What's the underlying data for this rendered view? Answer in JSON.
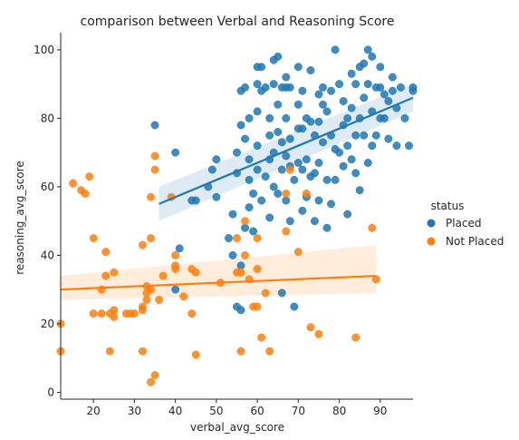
{
  "chart_data": {
    "type": "scatter",
    "title": "comparison between Verbal and Reasoning Score",
    "xlabel": "verbal_avg_score",
    "ylabel": "reasoning_avg_score",
    "xlim": [
      12,
      98
    ],
    "ylim": [
      -2,
      105
    ],
    "xticks": [
      20,
      30,
      40,
      50,
      60,
      70,
      80,
      90
    ],
    "yticks": [
      0,
      20,
      40,
      60,
      80,
      100
    ],
    "grid": false,
    "legend": {
      "title": "status",
      "placement": "right",
      "entries": [
        "Placed",
        "Not Placed"
      ]
    },
    "series": [
      {
        "name": "Placed",
        "color": "#1f77b4",
        "regression": {
          "x": [
            36,
            98
          ],
          "y": [
            55,
            86
          ],
          "ci_lower": [
            50,
            82
          ],
          "ci_upper": [
            60,
            90
          ]
        },
        "points": [
          [
            35,
            78
          ],
          [
            40,
            70
          ],
          [
            40,
            30
          ],
          [
            41,
            42
          ],
          [
            44,
            56
          ],
          [
            45,
            56
          ],
          [
            48,
            60
          ],
          [
            49,
            65
          ],
          [
            50,
            68
          ],
          [
            50,
            57
          ],
          [
            53,
            45
          ],
          [
            54,
            52
          ],
          [
            54,
            40
          ],
          [
            55,
            70
          ],
          [
            55,
            64
          ],
          [
            55,
            25
          ],
          [
            56,
            88
          ],
          [
            56,
            78
          ],
          [
            56,
            37
          ],
          [
            56,
            24
          ],
          [
            57,
            89
          ],
          [
            57,
            74
          ],
          [
            57,
            48
          ],
          [
            58,
            80
          ],
          [
            58,
            68
          ],
          [
            58,
            62
          ],
          [
            58,
            54
          ],
          [
            59,
            58
          ],
          [
            59,
            47
          ],
          [
            60,
            95
          ],
          [
            60,
            90
          ],
          [
            60,
            82
          ],
          [
            60,
            72
          ],
          [
            60,
            65
          ],
          [
            61,
            95
          ],
          [
            61,
            88
          ],
          [
            61,
            56
          ],
          [
            62,
            89
          ],
          [
            62,
            63
          ],
          [
            63,
            80
          ],
          [
            63,
            75
          ],
          [
            63,
            68
          ],
          [
            63,
            51
          ],
          [
            64,
            97
          ],
          [
            64,
            90
          ],
          [
            64,
            70
          ],
          [
            64,
            60
          ],
          [
            65,
            98
          ],
          [
            65,
            84
          ],
          [
            65,
            76
          ],
          [
            65,
            58
          ],
          [
            66,
            89
          ],
          [
            66,
            73
          ],
          [
            66,
            65
          ],
          [
            66,
            29
          ],
          [
            67,
            92
          ],
          [
            67,
            89
          ],
          [
            67,
            80
          ],
          [
            67,
            69
          ],
          [
            67,
            56
          ],
          [
            68,
            89
          ],
          [
            68,
            74
          ],
          [
            68,
            66
          ],
          [
            68,
            50
          ],
          [
            69,
            62
          ],
          [
            69,
            25
          ],
          [
            70,
            95
          ],
          [
            70,
            84
          ],
          [
            70,
            77
          ],
          [
            70,
            67
          ],
          [
            71,
            88
          ],
          [
            71,
            77
          ],
          [
            71,
            65
          ],
          [
            71,
            53
          ],
          [
            72,
            80
          ],
          [
            72,
            68
          ],
          [
            72,
            57
          ],
          [
            73,
            94
          ],
          [
            73,
            79
          ],
          [
            73,
            63
          ],
          [
            74,
            75
          ],
          [
            74,
            64
          ],
          [
            74,
            50
          ],
          [
            75,
            87
          ],
          [
            75,
            79
          ],
          [
            75,
            67
          ],
          [
            75,
            56
          ],
          [
            76,
            89
          ],
          [
            76,
            84
          ],
          [
            76,
            73
          ],
          [
            77,
            82
          ],
          [
            77,
            62
          ],
          [
            77,
            48
          ],
          [
            78,
            88
          ],
          [
            78,
            75
          ],
          [
            78,
            55
          ],
          [
            79,
            100
          ],
          [
            79,
            71
          ],
          [
            79,
            62
          ],
          [
            80,
            90
          ],
          [
            80,
            70
          ],
          [
            81,
            85
          ],
          [
            81,
            78
          ],
          [
            81,
            66
          ],
          [
            82,
            80
          ],
          [
            82,
            72
          ],
          [
            82,
            52
          ],
          [
            83,
            93
          ],
          [
            83,
            83
          ],
          [
            83,
            68
          ],
          [
            84,
            90
          ],
          [
            84,
            75
          ],
          [
            84,
            64
          ],
          [
            85,
            95
          ],
          [
            85,
            80
          ],
          [
            85,
            59
          ],
          [
            86,
            96
          ],
          [
            86,
            86
          ],
          [
            86,
            75
          ],
          [
            87,
            100
          ],
          [
            87,
            90
          ],
          [
            87,
            67
          ],
          [
            88,
            98
          ],
          [
            88,
            82
          ],
          [
            88,
            72
          ],
          [
            89,
            89
          ],
          [
            89,
            75
          ],
          [
            90,
            95
          ],
          [
            90,
            89
          ],
          [
            90,
            80
          ],
          [
            91,
            87
          ],
          [
            91,
            80
          ],
          [
            92,
            85
          ],
          [
            92,
            74
          ],
          [
            93,
            92
          ],
          [
            93,
            88
          ],
          [
            94,
            72
          ],
          [
            94,
            83
          ],
          [
            95,
            89
          ],
          [
            96,
            80
          ],
          [
            97,
            72
          ],
          [
            98,
            88
          ],
          [
            98,
            89
          ]
        ]
      },
      {
        "name": "Not Placed",
        "color": "#ff7f0e",
        "regression": {
          "x": [
            12,
            89
          ],
          "y": [
            30,
            34
          ],
          "ci_lower": [
            27,
            29
          ],
          "ci_upper": [
            34,
            43
          ]
        },
        "points": [
          [
            12,
            20
          ],
          [
            12,
            12
          ],
          [
            15,
            61
          ],
          [
            17,
            59
          ],
          [
            18,
            58
          ],
          [
            19,
            63
          ],
          [
            20,
            45
          ],
          [
            20,
            23
          ],
          [
            22,
            23
          ],
          [
            22,
            30
          ],
          [
            23,
            41
          ],
          [
            23,
            34
          ],
          [
            24,
            12
          ],
          [
            24,
            23
          ],
          [
            25,
            35
          ],
          [
            25,
            24
          ],
          [
            25,
            22
          ],
          [
            28,
            23
          ],
          [
            29,
            23
          ],
          [
            30,
            23
          ],
          [
            32,
            43
          ],
          [
            32,
            25
          ],
          [
            32,
            24
          ],
          [
            32,
            12
          ],
          [
            33,
            31
          ],
          [
            33,
            29
          ],
          [
            33,
            27
          ],
          [
            34,
            57
          ],
          [
            34,
            45
          ],
          [
            34,
            30
          ],
          [
            34,
            3
          ],
          [
            35,
            69
          ],
          [
            35,
            65
          ],
          [
            35,
            5
          ],
          [
            36,
            27
          ],
          [
            37,
            34
          ],
          [
            39,
            57
          ],
          [
            40,
            40
          ],
          [
            40,
            37
          ],
          [
            40,
            36
          ],
          [
            42,
            28
          ],
          [
            44,
            36
          ],
          [
            44,
            23
          ],
          [
            45,
            35
          ],
          [
            45,
            11
          ],
          [
            51,
            32
          ],
          [
            55,
            45
          ],
          [
            55,
            35
          ],
          [
            56,
            35
          ],
          [
            56,
            12
          ],
          [
            57,
            50
          ],
          [
            57,
            40
          ],
          [
            58,
            33
          ],
          [
            59,
            25
          ],
          [
            60,
            45
          ],
          [
            60,
            36
          ],
          [
            60,
            25
          ],
          [
            61,
            16
          ],
          [
            62,
            29
          ],
          [
            63,
            12
          ],
          [
            67,
            58
          ],
          [
            67,
            47
          ],
          [
            68,
            65
          ],
          [
            70,
            41
          ],
          [
            72,
            58
          ],
          [
            73,
            19
          ],
          [
            75,
            17
          ],
          [
            84,
            16
          ],
          [
            88,
            48
          ],
          [
            89,
            33
          ]
        ]
      }
    ]
  }
}
